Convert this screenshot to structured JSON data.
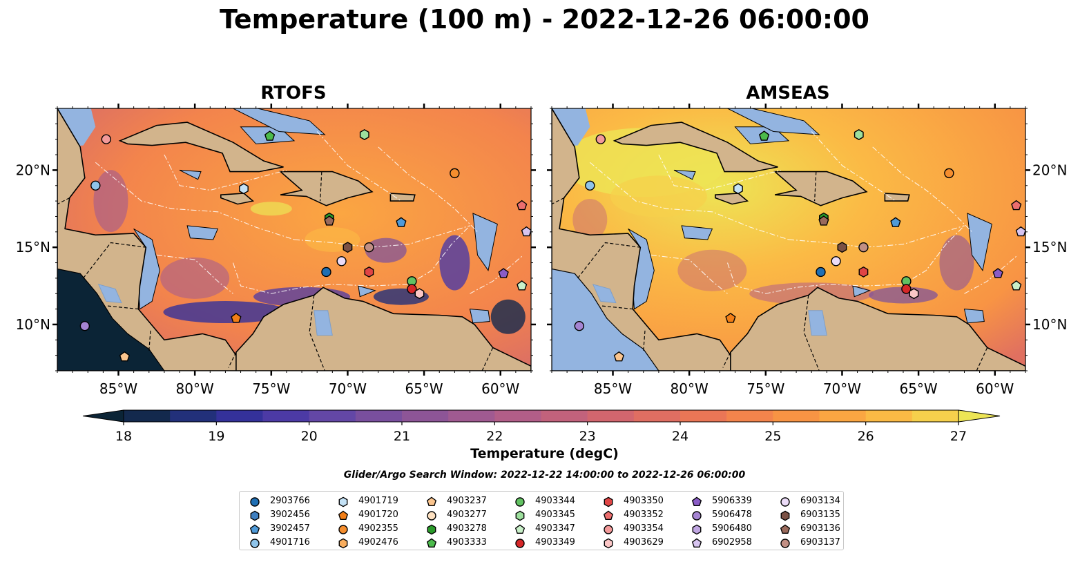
{
  "title": "Temperature (100 m) - 2022-12-26 06:00:00",
  "panels": [
    {
      "id": "rtofs",
      "title": "RTOFS"
    },
    {
      "id": "amseas",
      "title": "AMSEAS"
    }
  ],
  "axes": {
    "lon_range": [
      -89,
      -58
    ],
    "lat_range": [
      7,
      24
    ],
    "lon_ticks": [
      "85°W",
      "80°W",
      "75°W",
      "70°W",
      "65°W",
      "60°W"
    ],
    "lat_ticks": [
      "20°N",
      "15°N",
      "10°N"
    ],
    "lon_tick_values": [
      -85,
      -80,
      -75,
      -70,
      -65,
      -60
    ],
    "lat_tick_values": [
      20,
      15,
      10
    ]
  },
  "colorbar": {
    "label": "Temperature (degC)",
    "min": 18,
    "max": 27,
    "ticks": [
      "18",
      "19",
      "20",
      "21",
      "22",
      "23",
      "24",
      "25",
      "26",
      "27"
    ],
    "extend": "both",
    "colors": [
      "#0b2436",
      "#13294d",
      "#22307a",
      "#34319a",
      "#4c3aa5",
      "#6347a6",
      "#794f9e",
      "#8d5597",
      "#a05a91",
      "#b25e88",
      "#c2627c",
      "#d2666e",
      "#df6e62",
      "#ea7656",
      "#f3844c",
      "#f89444",
      "#fba642",
      "#fbba45",
      "#f6d04c",
      "#ede555"
    ]
  },
  "search_window": "Glider/Argo Search Window: 2022-12-22 14:00:00 to 2022-12-26 06:00:00",
  "legend": [
    {
      "label": "2903766",
      "marker": "circle",
      "color": "#1f6fb4"
    },
    {
      "label": "3902456",
      "marker": "hexagon",
      "color": "#3f7fc0"
    },
    {
      "label": "3902457",
      "marker": "pentagon",
      "color": "#4f9ad8"
    },
    {
      "label": "4901716",
      "marker": "circle",
      "color": "#8fc4ea"
    },
    {
      "label": "4901719",
      "marker": "hexagon",
      "color": "#c4e2f6"
    },
    {
      "label": "4901720",
      "marker": "pentagon",
      "color": "#f27e16"
    },
    {
      "label": "4902355",
      "marker": "circle",
      "color": "#f58e2e"
    },
    {
      "label": "4902476",
      "marker": "hexagon",
      "color": "#f8ad5e"
    },
    {
      "label": "4903237",
      "marker": "pentagon",
      "color": "#fbc58e"
    },
    {
      "label": "4903277",
      "marker": "circle",
      "color": "#fde0c0"
    },
    {
      "label": "4903278",
      "marker": "hexagon",
      "color": "#2a9a2a"
    },
    {
      "label": "4903333",
      "marker": "pentagon",
      "color": "#4cbb4c"
    },
    {
      "label": "4903344",
      "marker": "circle",
      "color": "#62c262"
    },
    {
      "label": "4903345",
      "marker": "hexagon",
      "color": "#9ddf9d"
    },
    {
      "label": "4903347",
      "marker": "pentagon",
      "color": "#c9f0c9"
    },
    {
      "label": "4903349",
      "marker": "circle",
      "color": "#d62728"
    },
    {
      "label": "4903350",
      "marker": "hexagon",
      "color": "#e04545"
    },
    {
      "label": "4903352",
      "marker": "pentagon",
      "color": "#ec6e6e"
    },
    {
      "label": "4903354",
      "marker": "circle",
      "color": "#f39a9a"
    },
    {
      "label": "4903629",
      "marker": "hexagon",
      "color": "#fbc6c6"
    },
    {
      "label": "5906339",
      "marker": "pentagon",
      "color": "#8a5cc6"
    },
    {
      "label": "5906478",
      "marker": "circle",
      "color": "#a584d2"
    },
    {
      "label": "5906480",
      "marker": "hexagon",
      "color": "#c0a6e2"
    },
    {
      "label": "6902958",
      "marker": "pentagon",
      "color": "#d7c4f0"
    },
    {
      "label": "6903134",
      "marker": "circle",
      "color": "#ecdcf8"
    },
    {
      "label": "6903135",
      "marker": "hexagon",
      "color": "#7b5145"
    },
    {
      "label": "6903136",
      "marker": "pentagon",
      "color": "#9a6a5c"
    },
    {
      "label": "6903137",
      "marker": "circle",
      "color": "#c28f84"
    }
  ],
  "profiles": [
    {
      "id": "4901716",
      "lon": -86.5,
      "lat": 19.0
    },
    {
      "id": "4903354",
      "lon": -85.8,
      "lat": 22.0
    },
    {
      "id": "4903333",
      "lon": -75.1,
      "lat": 22.2
    },
    {
      "id": "4903345",
      "lon": -68.9,
      "lat": 22.3
    },
    {
      "id": "4901719",
      "lon": -76.8,
      "lat": 18.8
    },
    {
      "id": "4902355",
      "lon": -63.0,
      "lat": 19.8
    },
    {
      "id": "4903352",
      "lon": -58.6,
      "lat": 17.7
    },
    {
      "id": "6902958",
      "lon": -58.3,
      "lat": 16.0
    },
    {
      "id": "3902457",
      "lon": -66.5,
      "lat": 16.6
    },
    {
      "id": "4903278",
      "lon": -71.2,
      "lat": 16.9
    },
    {
      "id": "6903136",
      "lon": -71.2,
      "lat": 16.7
    },
    {
      "id": "6903135",
      "lon": -70.0,
      "lat": 15.0
    },
    {
      "id": "6903137",
      "lon": -68.6,
      "lat": 15.0
    },
    {
      "id": "6903134",
      "lon": -70.4,
      "lat": 14.1
    },
    {
      "id": "2903766",
      "lon": -71.4,
      "lat": 13.4
    },
    {
      "id": "4903350",
      "lon": -68.6,
      "lat": 13.4
    },
    {
      "id": "4903344",
      "lon": -65.8,
      "lat": 12.8
    },
    {
      "id": "4903349",
      "lon": -65.8,
      "lat": 12.3
    },
    {
      "id": "4903629",
      "lon": -65.3,
      "lat": 12.0
    },
    {
      "id": "5906339",
      "lon": -59.8,
      "lat": 13.3
    },
    {
      "id": "4903347",
      "lon": -58.6,
      "lat": 12.5
    },
    {
      "id": "4901720",
      "lon": -77.3,
      "lat": 10.4
    },
    {
      "id": "5906478",
      "lon": -87.2,
      "lat": 9.9
    },
    {
      "id": "4903237",
      "lon": -84.6,
      "lat": 7.9
    }
  ]
}
